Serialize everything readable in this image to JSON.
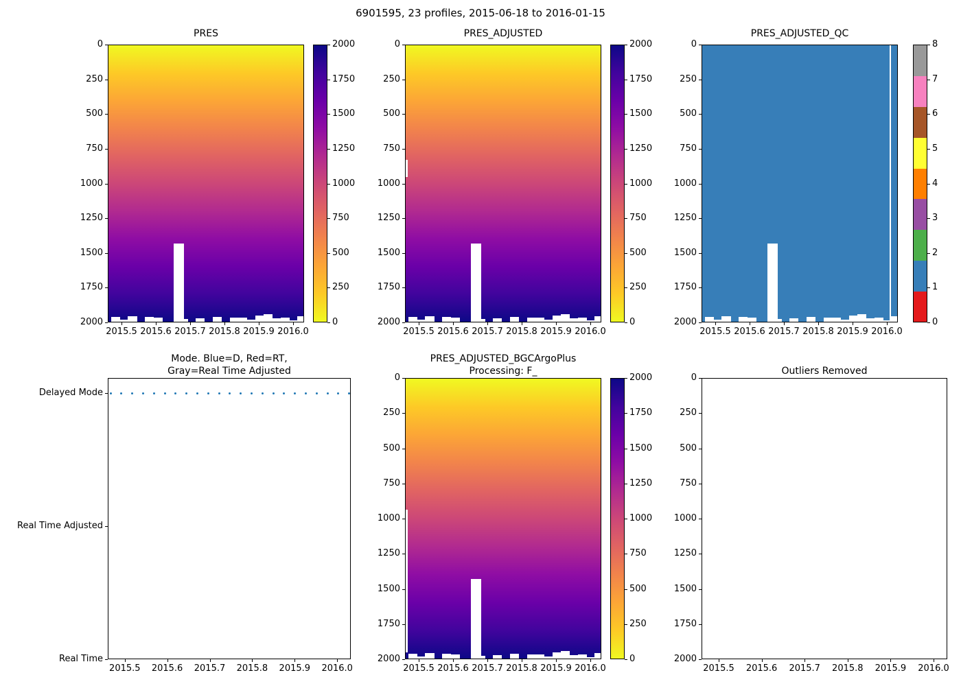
{
  "figure_title": "6901595, 23 profiles, 2015-06-18 to 2016-01-15",
  "panels": {
    "pres": {
      "title": "PRES"
    },
    "pres_adjusted": {
      "title": "PRES_ADJUSTED"
    },
    "pres_adjusted_qc": {
      "title": "PRES_ADJUSTED_QC"
    },
    "mode": {
      "title_lines": [
        "Mode. Blue=D, Red=RT,",
        "Gray=Real Time Adjusted"
      ],
      "y_tick_labels": [
        "Delayed Mode",
        "Real Time Adjusted",
        "Real Time"
      ]
    },
    "bgc": {
      "title_lines": [
        "PRES_ADJUSTED_BGCArgoPlus",
        "Processing: F_"
      ]
    },
    "outliers": {
      "title": "Outliers Removed"
    }
  },
  "ticks": {
    "x_labels": [
      "2015.5",
      "2015.6",
      "2015.7",
      "2015.8",
      "2015.9",
      "2016.0"
    ],
    "x_values": [
      2015.5,
      2015.6,
      2015.7,
      2015.8,
      2015.9,
      2016.0
    ],
    "depth_labels": [
      "0",
      "250",
      "500",
      "750",
      "1000",
      "1250",
      "1500",
      "1750",
      "2000"
    ],
    "pressure_cbar_labels_top_to_bottom": [
      "2000",
      "1750",
      "1500",
      "1250",
      "1000",
      "750",
      "500",
      "250",
      "0"
    ],
    "qc_cbar_labels_top_to_bottom": [
      "8",
      "7",
      "6",
      "5",
      "4",
      "3",
      "2",
      "1",
      "0"
    ]
  },
  "colors": {
    "plasma_top_to_bottom": [
      "#f0f921",
      "#fdca26",
      "#fca636",
      "#f2844b",
      "#e16462",
      "#cc4778",
      "#b12a90",
      "#8f0da4",
      "#6a00a8",
      "#41049d",
      "#0d0887"
    ],
    "qc_fill_blue": "#377eb8",
    "mode_dot_blue": "#1f77b4",
    "qc_cbar_colors_0_to_8": [
      "#e41a1c",
      "#377eb8",
      "#4daf4a",
      "#984ea3",
      "#ff7f00",
      "#ffff33",
      "#a65628",
      "#f781bf",
      "#999999"
    ]
  },
  "chart_data": [
    {
      "type": "heatmap",
      "panel": "top-left",
      "title": "PRES",
      "x_profile_times": [
        2015.463,
        2015.489,
        2015.515,
        2015.541,
        2015.567,
        2015.594,
        2015.62,
        2015.646,
        2015.672,
        2015.698,
        2015.724,
        2015.75,
        2015.776,
        2015.802,
        2015.829,
        2015.855,
        2015.881,
        2015.907,
        2015.933,
        2015.959,
        2015.985,
        2016.011,
        2016.038
      ],
      "x_tick_values": [
        2015.5,
        2015.6,
        2015.7,
        2015.8,
        2015.9,
        2016.0
      ],
      "y_range": [
        0,
        2000
      ],
      "y_axis_inverted": true,
      "y_tick_values": [
        0,
        250,
        500,
        750,
        1000,
        1250,
        1500,
        1750,
        2000
      ],
      "colormap": "plasma reversed (0 dbar = yellow, 2000 dbar = dark blue)",
      "colorbar_range": [
        0,
        2000
      ],
      "colorbar_tick_values": [
        0,
        250,
        500,
        750,
        1000,
        1250,
        1500,
        1750,
        2000
      ],
      "cell_value": "pressure equals depth: vertical gradient from 0 at surface to ~2000 at bottom",
      "profile_max_pressure": [
        1965,
        1985,
        1960,
        2000,
        1965,
        1970,
        2000,
        1430,
        1980,
        2000,
        1975,
        2000,
        1965,
        2000,
        1970,
        1970,
        1985,
        1955,
        1945,
        1975,
        1970,
        1990,
        1960
      ],
      "note": "profile 8 (x≈2015.646) has no data below ≈1430 dbar, shown as a white column to the bottom"
    },
    {
      "type": "heatmap",
      "panel": "top-middle",
      "title": "PRES_ADJUSTED",
      "same_data_as": "PRES",
      "extra": "thin white missing sliver at left edge between ≈825 and ≈950 dbar"
    },
    {
      "type": "heatmap",
      "panel": "top-right",
      "title": "PRES_ADJUSTED_QC",
      "qc_value_everywhere": 1,
      "fill_color": "#377eb8",
      "colorbar_type": "discrete, 9 categories 0-8 (Set1 colors)",
      "colorbar_tick_values": [
        0,
        1,
        2,
        3,
        4,
        5,
        6,
        7,
        8
      ],
      "colorbar_colors_0_to_8": [
        "#e41a1c",
        "#377eb8",
        "#4daf4a",
        "#984ea3",
        "#ff7f00",
        "#ffff33",
        "#a65628",
        "#f781bf",
        "#999999"
      ],
      "note": "same bottom gaps and white column as PRES; additional thin white missing strip at x≈2016.01"
    },
    {
      "type": "scatter",
      "panel": "bottom-left",
      "title": "Mode. Blue=D, Red=RT, Gray=Real Time Adjusted",
      "y_categories_bottom_to_top": [
        "Real Time",
        "Real Time Adjusted",
        "Delayed Mode"
      ],
      "x": [
        2015.463,
        2015.489,
        2015.515,
        2015.541,
        2015.567,
        2015.594,
        2015.62,
        2015.646,
        2015.672,
        2015.698,
        2015.724,
        2015.75,
        2015.776,
        2015.802,
        2015.829,
        2015.855,
        2015.881,
        2015.907,
        2015.933,
        2015.959,
        2015.985,
        2016.011,
        2016.038
      ],
      "y": "Delayed Mode for all 23 profiles",
      "marker_color": "#1f77b4"
    },
    {
      "type": "heatmap",
      "panel": "bottom-middle",
      "title": "PRES_ADJUSTED_BGCArgoPlus Processing: F_",
      "same_data_as": "PRES_ADJUSTED",
      "extra": "thin white missing sliver at left edge between ≈930 and ≈1950 dbar"
    },
    {
      "type": "empty",
      "panel": "bottom-right",
      "title": "Outliers Removed",
      "x_tick_values": [
        2015.5,
        2015.6,
        2015.7,
        2015.8,
        2015.9,
        2016.0
      ],
      "y_tick_values": [
        0,
        250,
        500,
        750,
        1000,
        1250,
        1500,
        1750,
        2000
      ],
      "y_axis_inverted": true,
      "note": "axes empty - no outliers plotted"
    }
  ]
}
